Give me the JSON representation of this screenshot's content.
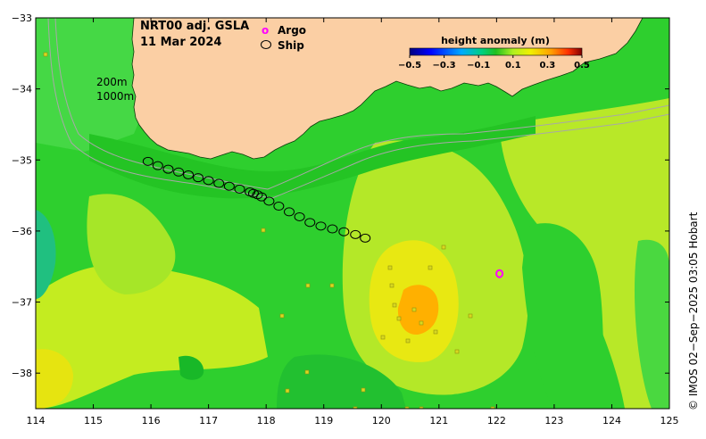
{
  "map": {
    "product": "NRT00 adj. GSLA",
    "date": "11 Mar 2024",
    "legend": {
      "argo_marker": "o",
      "argo_label": "Argo",
      "ship_label": "Ship"
    },
    "isobaths": [
      "200m",
      "1000m"
    ],
    "colorbar": {
      "title": "height anomaly (m)",
      "ticks": [
        "−0.5",
        "−0.3",
        "−0.1",
        "0.1",
        "0.3",
        "0.5"
      ],
      "range": [
        -0.5,
        0.5
      ]
    },
    "credit": "© IMOS 02−Sep−2025 03:05 Hobart",
    "lon_ticks": [
      "114",
      "115",
      "116",
      "117",
      "118",
      "119",
      "120",
      "121",
      "122",
      "123",
      "124",
      "125"
    ],
    "lat_ticks": [
      "−33",
      "−34",
      "−35",
      "−36",
      "−37",
      "−38"
    ],
    "lon_range": [
      114,
      125
    ],
    "lat_range": [
      -38.5,
      -33
    ],
    "argo_float": {
      "lon": 122.05,
      "lat": -36.6
    },
    "ship_track": [
      [
        115.95,
        -35.02
      ],
      [
        116.12,
        -35.08
      ],
      [
        116.3,
        -35.13
      ],
      [
        116.48,
        -35.17
      ],
      [
        116.65,
        -35.21
      ],
      [
        116.82,
        -35.25
      ],
      [
        117.0,
        -35.29
      ],
      [
        117.18,
        -35.33
      ],
      [
        117.36,
        -35.37
      ],
      [
        117.54,
        -35.41
      ],
      [
        117.72,
        -35.45
      ],
      [
        117.78,
        -35.47
      ],
      [
        117.85,
        -35.49
      ],
      [
        117.92,
        -35.52
      ],
      [
        118.05,
        -35.58
      ],
      [
        118.22,
        -35.65
      ],
      [
        118.4,
        -35.73
      ],
      [
        118.58,
        -35.8
      ],
      [
        118.76,
        -35.88
      ],
      [
        118.95,
        -35.93
      ],
      [
        119.15,
        -35.97
      ],
      [
        119.35,
        -36.01
      ],
      [
        119.55,
        -36.05
      ],
      [
        119.72,
        -36.1
      ]
    ]
  }
}
